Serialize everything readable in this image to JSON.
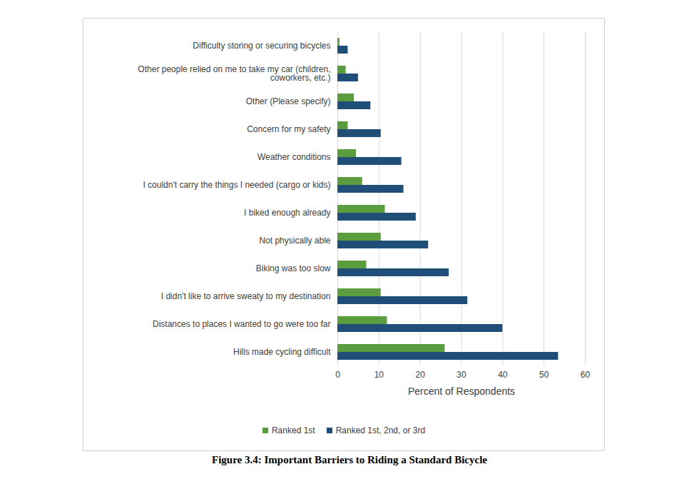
{
  "chart_data": {
    "type": "bar",
    "title": "Figure 3.4: Important Barriers to Riding a Standard Bicycle",
    "x_label": "Percent of Respondents",
    "orientation": "horizontal",
    "categories": [
      "Difficulty storing or securing bicycles",
      "Other people relied on me to take my car (children, coworkers, etc.)",
      "Other (Please specify)",
      "Concern for my safety",
      "Weather conditions",
      "I couldn't carry the things I needed (cargo or kids)",
      "I biked enough already",
      "Not physically able",
      "Biking was too slow",
      "I didn't like to arrive sweaty to my destination",
      "Distances to places I wanted to go were too far",
      "Hills made cycling difficult"
    ],
    "series": [
      {
        "name": "Ranked 1st",
        "color": "#5b9c3e",
        "values": [
          0.5,
          2,
          4,
          2.5,
          4.5,
          6,
          11.5,
          10.5,
          7,
          10.5,
          12,
          26
        ]
      },
      {
        "name": "Ranked 1st, 2nd, or 3rd",
        "color": "#1f4e79",
        "values": [
          2.5,
          5,
          8,
          10.5,
          15.5,
          16,
          19,
          22,
          27,
          31.5,
          40,
          53.5
        ]
      }
    ],
    "xlim": [
      0,
      60
    ],
    "xticks": [
      0,
      10,
      20,
      30,
      40,
      50,
      60
    ],
    "grid": true,
    "legend": "bottom"
  }
}
